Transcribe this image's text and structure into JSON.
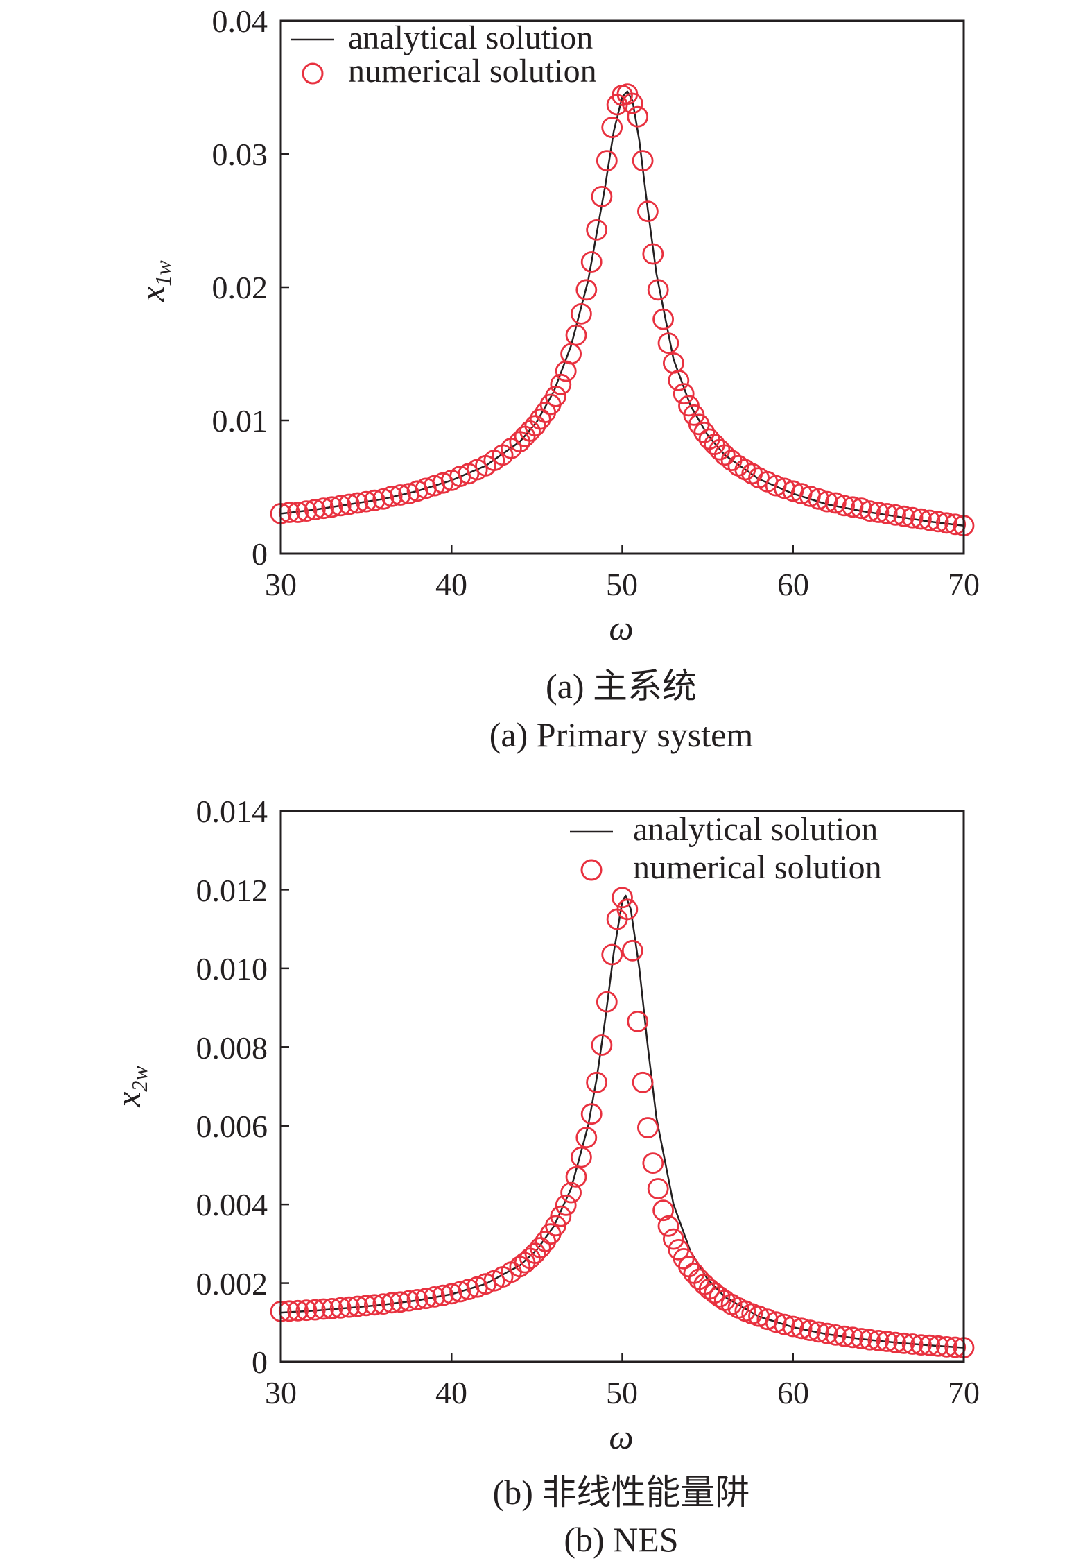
{
  "chart_data": [
    {
      "type": "line",
      "panel": "a",
      "title": "",
      "xlabel": "ω",
      "ylabel": {
        "base": "x",
        "sub": "1w"
      },
      "xlim": [
        30,
        70
      ],
      "ylim": [
        0,
        0.04
      ],
      "xticks": [
        30,
        40,
        50,
        60,
        70
      ],
      "yticks": [
        0,
        0.01,
        0.02,
        0.03,
        0.04
      ],
      "xtick_labels": [
        "30",
        "40",
        "50",
        "60",
        "70"
      ],
      "ytick_labels": [
        "0",
        "0.01",
        "0.02",
        "0.03",
        "0.04"
      ],
      "legend_position": "top-left",
      "legend": [
        "analytical solution",
        "numerical solution"
      ],
      "captions": [
        "(a) 主系统",
        "(a) Primary system"
      ],
      "colors": {
        "analytical": "#231f20",
        "numerical": "#e8313f"
      },
      "series": [
        {
          "name": "analytical solution",
          "style": "line",
          "x": [
            30,
            32,
            34,
            36,
            38,
            40,
            42,
            44,
            45,
            46,
            47,
            48,
            49,
            49.5,
            50,
            50.3,
            50.6,
            51,
            51.5,
            52,
            53,
            54,
            55,
            56,
            58,
            60,
            62,
            64,
            66,
            68,
            70
          ],
          "y": [
            0.003,
            0.0033,
            0.0037,
            0.0041,
            0.0047,
            0.0055,
            0.0066,
            0.0084,
            0.0099,
            0.0122,
            0.0156,
            0.0205,
            0.0276,
            0.0317,
            0.0343,
            0.0347,
            0.034,
            0.031,
            0.0258,
            0.021,
            0.0146,
            0.0111,
            0.0089,
            0.0074,
            0.0056,
            0.0045,
            0.0037,
            0.0032,
            0.0028,
            0.0024,
            0.0021
          ]
        },
        {
          "name": "numerical solution",
          "style": "marker",
          "x": [
            30,
            30.5,
            31,
            31.5,
            32,
            32.5,
            33,
            33.5,
            34,
            34.5,
            35,
            35.5,
            36,
            36.5,
            37,
            37.5,
            38,
            38.5,
            39,
            39.5,
            40,
            40.5,
            41,
            41.5,
            42,
            42.5,
            43,
            43.5,
            44,
            44.3,
            44.6,
            44.9,
            45.2,
            45.5,
            45.8,
            46.1,
            46.4,
            46.7,
            47,
            47.3,
            47.6,
            47.9,
            48.2,
            48.5,
            48.8,
            49.1,
            49.4,
            49.7,
            50,
            50.3,
            50.6,
            50.9,
            51.2,
            51.5,
            51.8,
            52.1,
            52.4,
            52.7,
            53,
            53.3,
            53.6,
            53.9,
            54.2,
            54.5,
            54.8,
            55.1,
            55.4,
            55.7,
            56,
            56.4,
            56.8,
            57.2,
            57.6,
            58,
            58.5,
            59,
            59.5,
            60,
            60.5,
            61,
            61.5,
            62,
            62.5,
            63,
            63.5,
            64,
            64.5,
            65,
            65.5,
            66,
            66.5,
            67,
            67.5,
            68,
            68.5,
            69,
            69.5,
            70
          ],
          "y": [
            0.003,
            0.0031,
            0.0031,
            0.0032,
            0.0033,
            0.0034,
            0.0035,
            0.0036,
            0.0037,
            0.0038,
            0.0039,
            0.004,
            0.0041,
            0.0043,
            0.0044,
            0.0045,
            0.0047,
            0.0049,
            0.0051,
            0.0053,
            0.0055,
            0.0058,
            0.006,
            0.0063,
            0.0066,
            0.007,
            0.0074,
            0.0079,
            0.0084,
            0.0088,
            0.0092,
            0.0096,
            0.0101,
            0.0106,
            0.0112,
            0.0118,
            0.0127,
            0.0137,
            0.015,
            0.0164,
            0.018,
            0.0198,
            0.0219,
            0.0243,
            0.0268,
            0.0295,
            0.032,
            0.0337,
            0.0344,
            0.0345,
            0.0338,
            0.0328,
            0.0295,
            0.0257,
            0.0225,
            0.0198,
            0.0176,
            0.0158,
            0.0143,
            0.013,
            0.012,
            0.0111,
            0.0104,
            0.0097,
            0.0091,
            0.0086,
            0.0082,
            0.0078,
            0.0074,
            0.007,
            0.0066,
            0.0063,
            0.006,
            0.0057,
            0.0054,
            0.0051,
            0.0049,
            0.0047,
            0.0045,
            0.0043,
            0.0041,
            0.0039,
            0.0038,
            0.0036,
            0.0035,
            0.0034,
            0.0032,
            0.0031,
            0.003,
            0.0029,
            0.0028,
            0.0027,
            0.0026,
            0.0025,
            0.0024,
            0.0023,
            0.0022,
            0.0021
          ]
        }
      ]
    },
    {
      "type": "line",
      "panel": "b",
      "title": "",
      "xlabel": "ω",
      "ylabel": {
        "base": "x",
        "sub": "2w"
      },
      "xlim": [
        30,
        70
      ],
      "ylim": [
        0,
        0.014
      ],
      "xticks": [
        30,
        40,
        50,
        60,
        70
      ],
      "yticks": [
        0,
        0.002,
        0.004,
        0.006,
        0.008,
        0.01,
        0.012,
        0.014
      ],
      "xtick_labels": [
        "30",
        "40",
        "50",
        "60",
        "70"
      ],
      "ytick_labels": [
        "0",
        "0.002",
        "0.004",
        "0.006",
        "0.008",
        "0.010",
        "0.012",
        "0.014"
      ],
      "legend_position": "top-right",
      "legend": [
        "analytical solution",
        "numerical solution"
      ],
      "captions": [
        "(b) 非线性能量阱",
        "(b) NES"
      ],
      "colors": {
        "analytical": "#231f20",
        "numerical": "#e8313f"
      },
      "series": [
        {
          "name": "analytical solution",
          "style": "line",
          "x": [
            30,
            32,
            34,
            36,
            38,
            40,
            42,
            44,
            45,
            46,
            47,
            48,
            48.5,
            49,
            49.5,
            50,
            50.2,
            50.5,
            51,
            51.5,
            52,
            53,
            54,
            55,
            56,
            58,
            60,
            62,
            64,
            66,
            68,
            70
          ],
          "y": [
            0.00125,
            0.0013,
            0.00137,
            0.00145,
            0.00156,
            0.00172,
            0.00198,
            0.00245,
            0.00285,
            0.00345,
            0.0044,
            0.006,
            0.0072,
            0.0087,
            0.0104,
            0.0117,
            0.01185,
            0.0115,
            0.01,
            0.008,
            0.0062,
            0.004,
            0.0028,
            0.0021,
            0.00165,
            0.00115,
            0.00088,
            0.0007,
            0.00058,
            0.00049,
            0.00042,
            0.00036
          ]
        },
        {
          "name": "numerical solution",
          "style": "marker",
          "x": [
            30,
            30.5,
            31,
            31.5,
            32,
            32.5,
            33,
            33.5,
            34,
            34.5,
            35,
            35.5,
            36,
            36.5,
            37,
            37.5,
            38,
            38.5,
            39,
            39.5,
            40,
            40.5,
            41,
            41.5,
            42,
            42.5,
            43,
            43.5,
            44,
            44.3,
            44.6,
            44.9,
            45.2,
            45.5,
            45.8,
            46.1,
            46.4,
            46.7,
            47,
            47.3,
            47.6,
            47.9,
            48.2,
            48.5,
            48.8,
            49.1,
            49.4,
            49.7,
            50,
            50.3,
            50.6,
            50.9,
            51.2,
            51.5,
            51.8,
            52.1,
            52.4,
            52.7,
            53,
            53.3,
            53.6,
            53.9,
            54.2,
            54.5,
            54.8,
            55.1,
            55.4,
            55.7,
            56,
            56.4,
            56.8,
            57.2,
            57.6,
            58,
            58.5,
            59,
            59.5,
            60,
            60.5,
            61,
            61.5,
            62,
            62.5,
            63,
            63.5,
            64,
            64.5,
            65,
            65.5,
            66,
            66.5,
            67,
            67.5,
            68,
            68.5,
            69,
            69.5,
            70
          ],
          "y": [
            0.00128,
            0.00129,
            0.0013,
            0.00131,
            0.00132,
            0.00134,
            0.00135,
            0.00137,
            0.00139,
            0.00141,
            0.00143,
            0.00145,
            0.00147,
            0.0015,
            0.00152,
            0.00155,
            0.00158,
            0.00161,
            0.00165,
            0.00169,
            0.00173,
            0.00178,
            0.00184,
            0.0019,
            0.00198,
            0.00206,
            0.00216,
            0.00228,
            0.00242,
            0.00252,
            0.00263,
            0.00276,
            0.0029,
            0.00306,
            0.00325,
            0.00346,
            0.0037,
            0.00398,
            0.0043,
            0.0047,
            0.0052,
            0.0057,
            0.0063,
            0.0071,
            0.00805,
            0.00915,
            0.01035,
            0.01125,
            0.0118,
            0.0115,
            0.01045,
            0.00865,
            0.0071,
            0.00595,
            0.00505,
            0.0044,
            0.00385,
            0.00345,
            0.00312,
            0.00285,
            0.00262,
            0.00242,
            0.00225,
            0.0021,
            0.00197,
            0.00185,
            0.00175,
            0.00165,
            0.00156,
            0.00146,
            0.00137,
            0.00129,
            0.00122,
            0.00116,
            0.00108,
            0.00101,
            0.00095,
            0.0009,
            0.00085,
            0.0008,
            0.00076,
            0.00072,
            0.00068,
            0.00065,
            0.00062,
            0.00059,
            0.00056,
            0.00054,
            0.00052,
            0.00049,
            0.00047,
            0.00045,
            0.00043,
            0.00042,
            0.0004,
            0.00038,
            0.00037,
            0.00036
          ]
        }
      ]
    }
  ]
}
